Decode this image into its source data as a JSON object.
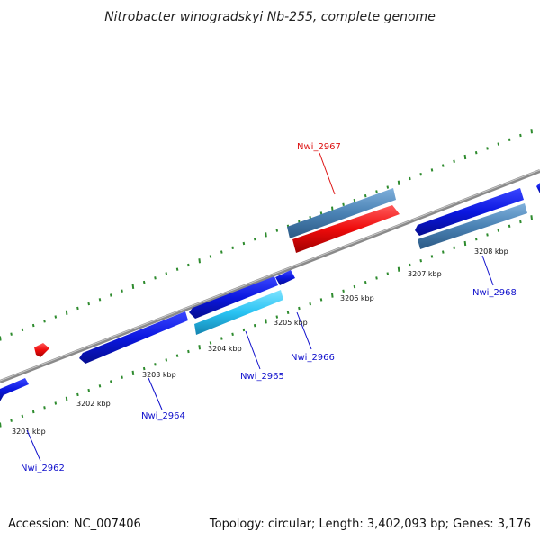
{
  "title": "Nitrobacter winogradskyi Nb-255, complete genome",
  "footer": {
    "accession": "Accession: NC_007406",
    "topology": "Topology: circular; Length: 3,402,093 bp; Genes: 3,176"
  },
  "colors": {
    "background": "#ffffff",
    "backbone": "#8a8a8a",
    "tick_marks": "#2e8b2e",
    "gene_forward": "#0b17e0",
    "gene_reverse": "#0b17e0",
    "gene_rna": "#ee0b0b",
    "gene_pseudo": "#4a82b4",
    "gene_highlight": "#29c3f3",
    "label_default": "#1010cc",
    "label_rna": "#dd1111"
  },
  "scale_labels": [
    "3201 kbp",
    "3202 kbp",
    "3203 kbp",
    "3204 kbp",
    "3205 kbp",
    "3206 kbp",
    "3207 kbp",
    "3208 kbp"
  ],
  "gene_labels": [
    {
      "name": "Nwi_2962",
      "kind": "default"
    },
    {
      "name": "Nwi_2964",
      "kind": "default"
    },
    {
      "name": "Nwi_2965",
      "kind": "default"
    },
    {
      "name": "Nwi_2966",
      "kind": "default"
    },
    {
      "name": "Nwi_2967",
      "kind": "rna"
    },
    {
      "name": "Nwi_2968",
      "kind": "default"
    }
  ]
}
